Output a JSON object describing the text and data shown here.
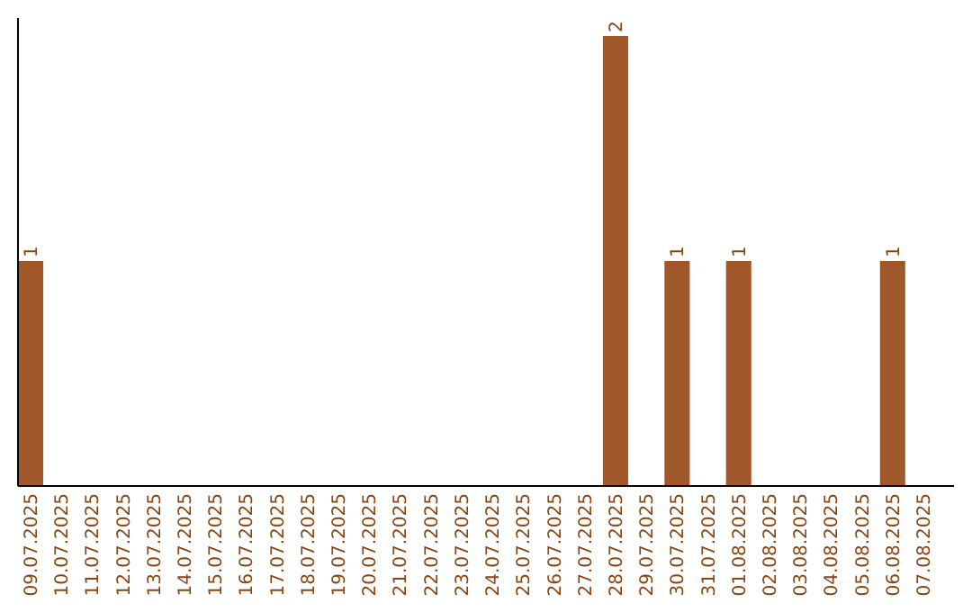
{
  "chart_data": {
    "type": "bar",
    "categories": [
      "09.07.2025",
      "10.07.2025",
      "11.07.2025",
      "12.07.2025",
      "13.07.2025",
      "14.07.2025",
      "15.07.2025",
      "16.07.2025",
      "17.07.2025",
      "18.07.2025",
      "19.07.2025",
      "20.07.2025",
      "21.07.2025",
      "22.07.2025",
      "23.07.2025",
      "24.07.2025",
      "25.07.2025",
      "26.07.2025",
      "27.07.2025",
      "28.07.2025",
      "29.07.2025",
      "30.07.2025",
      "31.07.2025",
      "01.08.2025",
      "02.08.2025",
      "03.08.2025",
      "04.08.2025",
      "05.08.2025",
      "06.08.2025",
      "07.08.2025"
    ],
    "values": [
      1,
      0,
      0,
      0,
      0,
      0,
      0,
      0,
      0,
      0,
      0,
      0,
      0,
      0,
      0,
      0,
      0,
      0,
      0,
      2,
      0,
      1,
      0,
      1,
      0,
      0,
      0,
      0,
      1,
      0
    ],
    "value_labels": [
      "1",
      null,
      null,
      null,
      null,
      null,
      null,
      null,
      null,
      null,
      null,
      null,
      null,
      null,
      null,
      null,
      null,
      null,
      null,
      "2",
      null,
      "1",
      null,
      "1",
      null,
      null,
      null,
      null,
      "1",
      null
    ],
    "color": "#a0582a",
    "ylim": [
      0,
      2.08
    ],
    "tick_labels": "x",
    "grid": false
  }
}
